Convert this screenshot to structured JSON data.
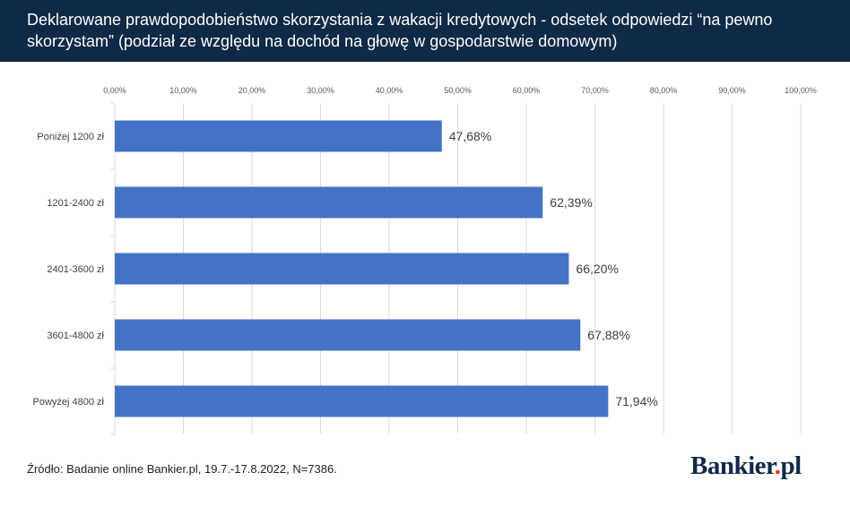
{
  "header": {
    "title": "Deklarowane prawdopodobieństwo skorzystania z wakacji kredytowych - odsetek odpowiedzi “na pewno skorzystam” (podział ze względu na dochód na głowę w gospodarstwie domowym)"
  },
  "chart_data": {
    "type": "bar",
    "orientation": "horizontal",
    "categories": [
      "Poniżej 1200 zł",
      "1201-2400 zł",
      "2401-3600 zł",
      "3601-4800 zł",
      "Powyżej 4800 zł"
    ],
    "values": [
      47.68,
      62.39,
      66.2,
      67.88,
      71.94
    ],
    "data_labels": [
      "47,68%",
      "62,39%",
      "66,20%",
      "67,88%",
      "71,94%"
    ],
    "x_ticks": [
      "0,00%",
      "10,00%",
      "20,00%",
      "30,00%",
      "40,00%",
      "50,00%",
      "60,00%",
      "70,00%",
      "80,00%",
      "90,00%",
      "100,00%"
    ],
    "xlim": [
      0,
      100
    ],
    "x_axis_position": "top",
    "grid": true,
    "bar_color": "#4472c4"
  },
  "footer": {
    "source": "Źródło: Badanie online Bankier.pl, 19.7.-17.8.2022, N=7386.",
    "logo_text": "Bankier",
    "logo_dot": ".",
    "logo_suffix": "pl"
  }
}
